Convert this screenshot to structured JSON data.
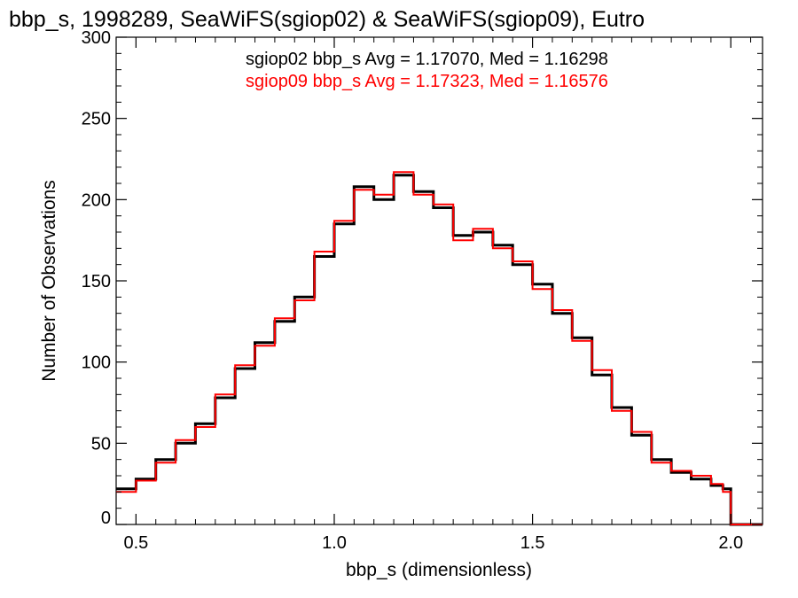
{
  "chart_data": {
    "type": "line",
    "title": "bbp_s, 1998289, SeaWiFS(sgiop02) & SeaWiFS(sgiop09), Eutro",
    "xlabel": "bbp_s (dimensionless)",
    "ylabel": "Number of Observations",
    "xlim": [
      0.45,
      2.08
    ],
    "ylim": [
      0,
      300
    ],
    "x_ticks": [
      "0.5",
      "1.0",
      "1.5",
      "2.0"
    ],
    "y_ticks": [
      "0",
      "50",
      "100",
      "150",
      "200",
      "250",
      "300"
    ],
    "grid": false,
    "legend_placement": "top-right",
    "annotations": [
      {
        "text": "sgiop02 bbp_s Avg = 1.17070, Med = 1.16298",
        "color": "#000000"
      },
      {
        "text": "sgiop09 bbp_s Avg = 1.17323, Med = 1.16576",
        "color": "#ff0000"
      }
    ],
    "series": [
      {
        "color": "#000000",
        "x": [
          0.45,
          0.5,
          0.55,
          0.6,
          0.65,
          0.7,
          0.75,
          0.8,
          0.85,
          0.9,
          0.95,
          1.0,
          1.05,
          1.1,
          1.15,
          1.2,
          1.25,
          1.3,
          1.35,
          1.4,
          1.45,
          1.5,
          1.55,
          1.6,
          1.65,
          1.7,
          1.75,
          1.8,
          1.85,
          1.9,
          1.95,
          1.98,
          2.0,
          2.08
        ],
        "y": [
          22,
          28,
          40,
          50,
          62,
          78,
          96,
          112,
          125,
          140,
          165,
          185,
          208,
          200,
          215,
          205,
          195,
          178,
          180,
          172,
          160,
          148,
          130,
          115,
          92,
          72,
          55,
          40,
          32,
          28,
          24,
          22,
          0,
          0
        ]
      },
      {
        "color": "#ff0000",
        "x": [
          0.45,
          0.5,
          0.55,
          0.6,
          0.65,
          0.7,
          0.75,
          0.8,
          0.85,
          0.9,
          0.95,
          1.0,
          1.05,
          1.1,
          1.15,
          1.2,
          1.25,
          1.3,
          1.35,
          1.4,
          1.45,
          1.5,
          1.55,
          1.6,
          1.65,
          1.7,
          1.75,
          1.8,
          1.85,
          1.9,
          1.95,
          1.98,
          2.0,
          2.08
        ],
        "y": [
          20,
          27,
          38,
          52,
          60,
          80,
          98,
          110,
          127,
          138,
          168,
          187,
          206,
          203,
          217,
          203,
          197,
          175,
          182,
          170,
          162,
          145,
          132,
          113,
          95,
          70,
          57,
          38,
          33,
          30,
          25,
          20,
          0,
          0
        ]
      }
    ]
  }
}
